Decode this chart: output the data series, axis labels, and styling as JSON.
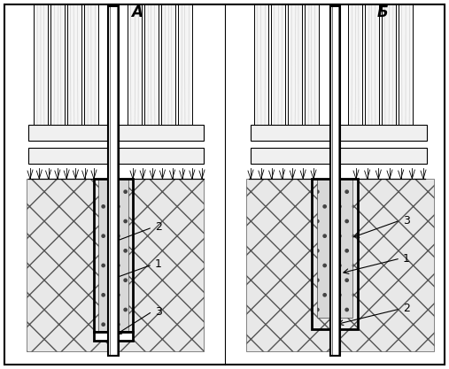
{
  "title": "",
  "bg_color": "#ffffff",
  "label_A": "А",
  "label_B": "Б",
  "label_1": "1",
  "label_2": "2",
  "label_3": "3",
  "line_color": "#000000",
  "figure_width": 5.07,
  "figure_height": 4.17,
  "dpi": 100
}
